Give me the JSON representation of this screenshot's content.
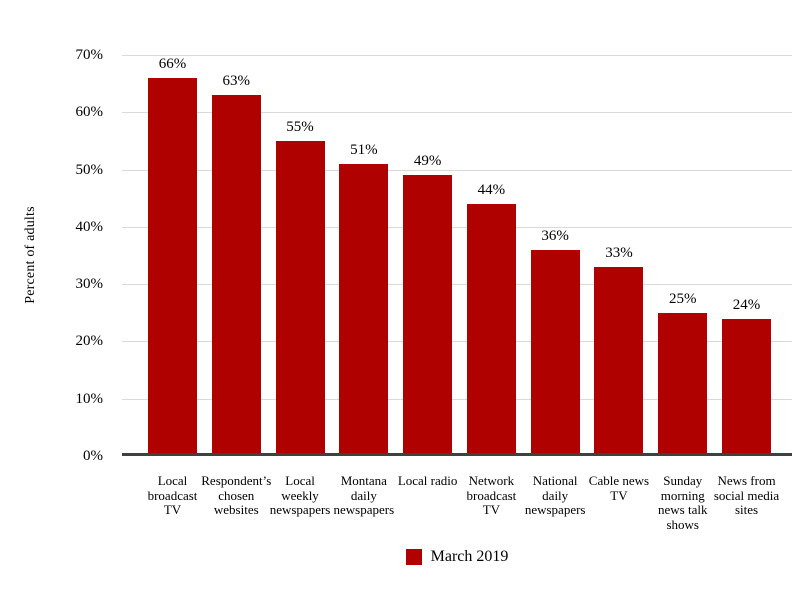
{
  "chart_data": {
    "type": "bar",
    "title": "",
    "xlabel": "",
    "ylabel": "Percent of adults",
    "series_name": "March 2019",
    "legend_position": "bottom",
    "grid": true,
    "ylim": [
      0,
      70
    ],
    "ytick_step": 10,
    "ytick_labels": [
      "0%",
      "10%",
      "20%",
      "30%",
      "40%",
      "50%",
      "60%",
      "70%"
    ],
    "categories": [
      "Local broadcast TV",
      "Respondent’s chosen websites",
      "Local weekly newspapers",
      "Montana daily newspapers",
      "Local radio",
      "Network broadcast TV",
      "National daily newspapers",
      "Cable news TV",
      "Sunday morning news talk shows",
      "News from social media sites"
    ],
    "values": [
      66,
      63,
      55,
      51,
      49,
      44,
      36,
      33,
      25,
      24
    ],
    "value_labels": [
      "66%",
      "63%",
      "55%",
      "51%",
      "49%",
      "44%",
      "36%",
      "33%",
      "25%",
      "24%"
    ]
  },
  "colors": {
    "bar": "#B00101",
    "axis_line": "#404040",
    "gridline": "#D9D9D9",
    "text": "#000000",
    "background": "#FFFFFF"
  }
}
